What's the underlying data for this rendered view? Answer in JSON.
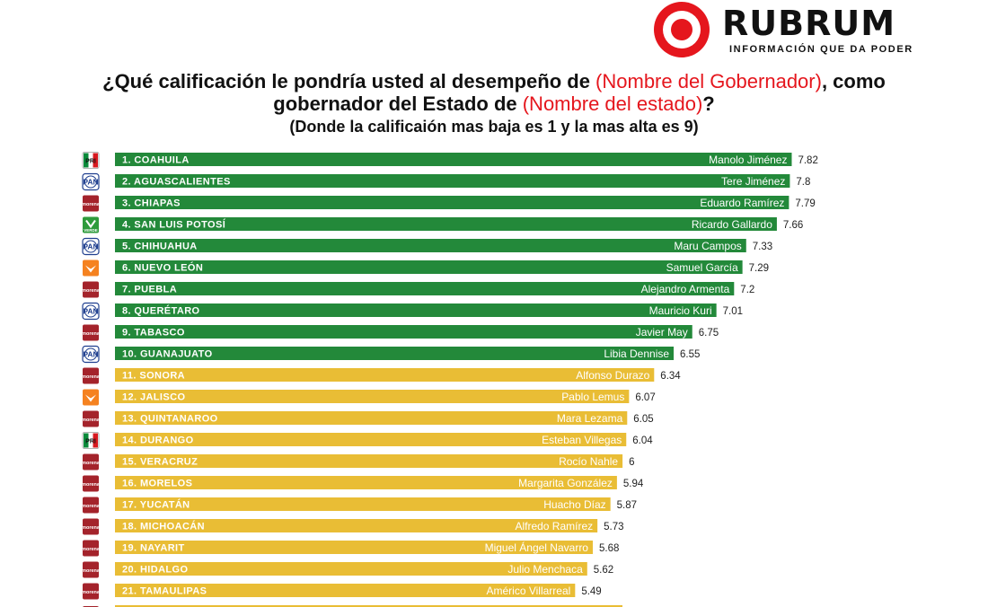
{
  "brand": {
    "name": "RUBRUM",
    "tagline": "INFORMACIÓN QUE DA PODER",
    "color": "#e5161d"
  },
  "question": {
    "line1_a": "¿Qué calificación le pondría usted al desempeño de ",
    "line1_highlight": "(Nombre del Gobernador)",
    "line1_b": ", como",
    "line2_a": "gobernador del Estado de ",
    "line2_highlight": "(Nombre del estado)",
    "line2_b": "?",
    "subtitle": "(Donde la calificaión mas baja es 1 y la mas alta es 9)"
  },
  "colors": {
    "top10": "#23893a",
    "rest": "#e9bd35",
    "pan": "#1f3f8f",
    "morena": "#a4232b",
    "mc": "#f58220",
    "pvem": "#2e9b3c",
    "pri_green": "#0a8a3a",
    "pri_red": "#d71920"
  },
  "chart_data": {
    "type": "bar",
    "orientation": "horizontal",
    "title": "¿Qué calificación le pondría usted al desempeño de (Nombre del Gobernador), como gobernador del Estado de (Nombre del estado)?",
    "scale": [
      1,
      9
    ],
    "rows": [
      {
        "label": "1. COAHUILA",
        "governor": "Manolo Jiménez",
        "value": 7.82,
        "party": "PRI"
      },
      {
        "label": "2. AGUASCALIENTES",
        "governor": "Tere Jiménez",
        "value": 7.8,
        "party": "PAN"
      },
      {
        "label": "3. CHIAPAS",
        "governor": "Eduardo Ramírez",
        "value": 7.79,
        "party": "MORENA"
      },
      {
        "label": "4. SAN LUIS POTOSÍ",
        "governor": "Ricardo Gallardo",
        "value": 7.66,
        "party": "VERDE"
      },
      {
        "label": "5. CHIHUAHUA",
        "governor": "Maru Campos",
        "value": 7.33,
        "party": "PAN"
      },
      {
        "label": "6. NUEVO LEÓN",
        "governor": "Samuel García",
        "value": 7.29,
        "party": "MC"
      },
      {
        "label": "7. PUEBLA",
        "governor": "Alejandro Armenta",
        "value": 7.2,
        "party": "MORENA"
      },
      {
        "label": "8. QUERÉTARO",
        "governor": "Mauricio Kuri",
        "value": 7.01,
        "party": "PAN"
      },
      {
        "label": "9. TABASCO",
        "governor": "Javier May",
        "value": 6.75,
        "party": "MORENA"
      },
      {
        "label": "10. GUANAJUATO",
        "governor": "Libia Dennise",
        "value": 6.55,
        "party": "PAN"
      },
      {
        "label": "11. SONORA",
        "governor": "Alfonso Durazo",
        "value": 6.34,
        "party": "MORENA"
      },
      {
        "label": "12. JALISCO",
        "governor": "Pablo Lemus",
        "value": 6.07,
        "party": "MC"
      },
      {
        "label": "13. QUINTANAROO",
        "governor": "Mara Lezama",
        "value": 6.05,
        "party": "MORENA"
      },
      {
        "label": "14. DURANGO",
        "governor": "Esteban Villegas",
        "value": 6.04,
        "party": "PRI"
      },
      {
        "label": "15. VERACRUZ",
        "governor": "Rocío Nahle",
        "value": 6,
        "party": "MORENA"
      },
      {
        "label": "16. MORELOS",
        "governor": "Margarita González",
        "value": 5.94,
        "party": "MORENA"
      },
      {
        "label": "17. YUCATÁN",
        "governor": "Huacho Díaz",
        "value": 5.87,
        "party": "MORENA"
      },
      {
        "label": "18. MICHOACÁN",
        "governor": "Alfredo Ramírez",
        "value": 5.73,
        "party": "MORENA"
      },
      {
        "label": "19. NAYARIT",
        "governor": "Miguel Ángel Navarro",
        "value": 5.68,
        "party": "MORENA"
      },
      {
        "label": "20. HIDALGO",
        "governor": "Julio Menchaca",
        "value": 5.62,
        "party": "MORENA"
      },
      {
        "label": "21. TAMAULIPAS",
        "governor": "Américo Villarreal",
        "value": 5.49,
        "party": "MORENA"
      }
    ]
  },
  "party_labels": {
    "PAN": "PAN",
    "MORENA": "morena",
    "VERDE": "VERDE",
    "PRI": "PRI"
  }
}
